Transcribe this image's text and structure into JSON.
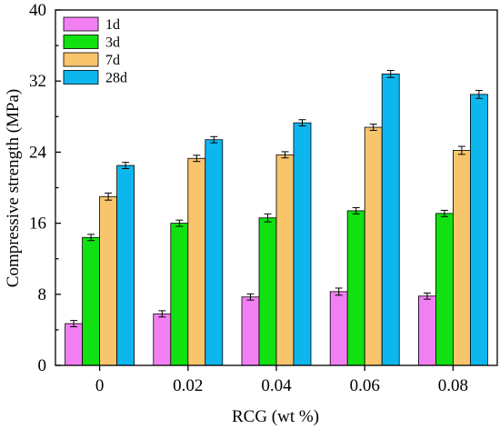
{
  "chart_data": {
    "type": "bar",
    "title": "",
    "xlabel": "RCG (wt %)",
    "ylabel": "Compressive strength (MPa)",
    "ylim": [
      0,
      40
    ],
    "yticks": [
      "0",
      "8",
      "16",
      "24",
      "32",
      "40"
    ],
    "categories": [
      "0",
      "0.02",
      "0.04",
      "0.06",
      "0.08"
    ],
    "series": [
      {
        "name": "1d",
        "color": "#f27ff2",
        "values": [
          4.7,
          5.8,
          7.7,
          8.3,
          7.8
        ],
        "errors": [
          0.35,
          0.35,
          0.35,
          0.4,
          0.35
        ]
      },
      {
        "name": "3d",
        "color": "#11e011",
        "values": [
          14.4,
          16.0,
          16.6,
          17.4,
          17.1
        ],
        "errors": [
          0.35,
          0.35,
          0.45,
          0.35,
          0.35
        ]
      },
      {
        "name": "7d",
        "color": "#f8c46c",
        "values": [
          19.0,
          23.3,
          23.7,
          26.8,
          24.2
        ],
        "errors": [
          0.4,
          0.35,
          0.35,
          0.35,
          0.45
        ]
      },
      {
        "name": "28d",
        "color": "#0db7ee",
        "values": [
          22.5,
          25.4,
          27.3,
          32.8,
          30.5
        ],
        "errors": [
          0.35,
          0.35,
          0.35,
          0.4,
          0.45
        ]
      }
    ],
    "grid": false,
    "legend": "top-left"
  }
}
